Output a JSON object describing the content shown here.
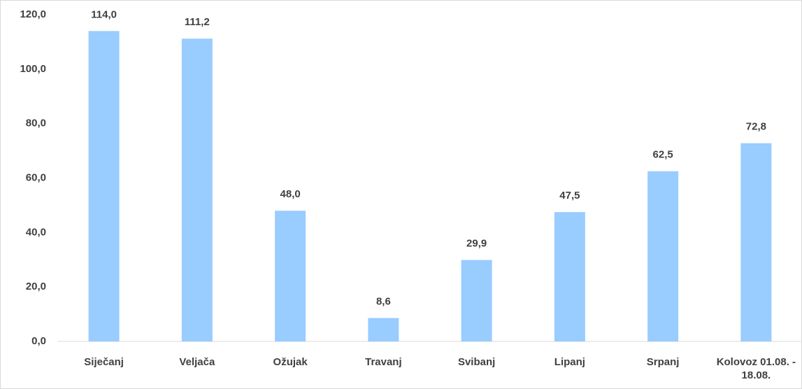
{
  "chart_data": {
    "type": "bar",
    "categories": [
      "Siječanj",
      "Veljača",
      "Ožujak",
      "Travanj",
      "Svibanj",
      "Lipanj",
      "Srpanj",
      "Kolovoz 01.08. - 18.08."
    ],
    "values": [
      114.0,
      111.2,
      48.0,
      8.6,
      29.9,
      47.5,
      62.5,
      72.8
    ],
    "value_labels": [
      "114,0",
      "111,2",
      "48,0",
      "8,6",
      "29,9",
      "47,5",
      "62,5",
      "72,8"
    ],
    "color": "#99ccff",
    "ylim": [
      0,
      120
    ],
    "yticks": [
      {
        "value": 0,
        "label": "0,0"
      },
      {
        "value": 20,
        "label": "20,0"
      },
      {
        "value": 40,
        "label": "40,0"
      },
      {
        "value": 60,
        "label": "60,0"
      },
      {
        "value": 80,
        "label": "80,0"
      },
      {
        "value": 100,
        "label": "100,0"
      },
      {
        "value": 120,
        "label": "120,0"
      }
    ],
    "grid": false
  }
}
